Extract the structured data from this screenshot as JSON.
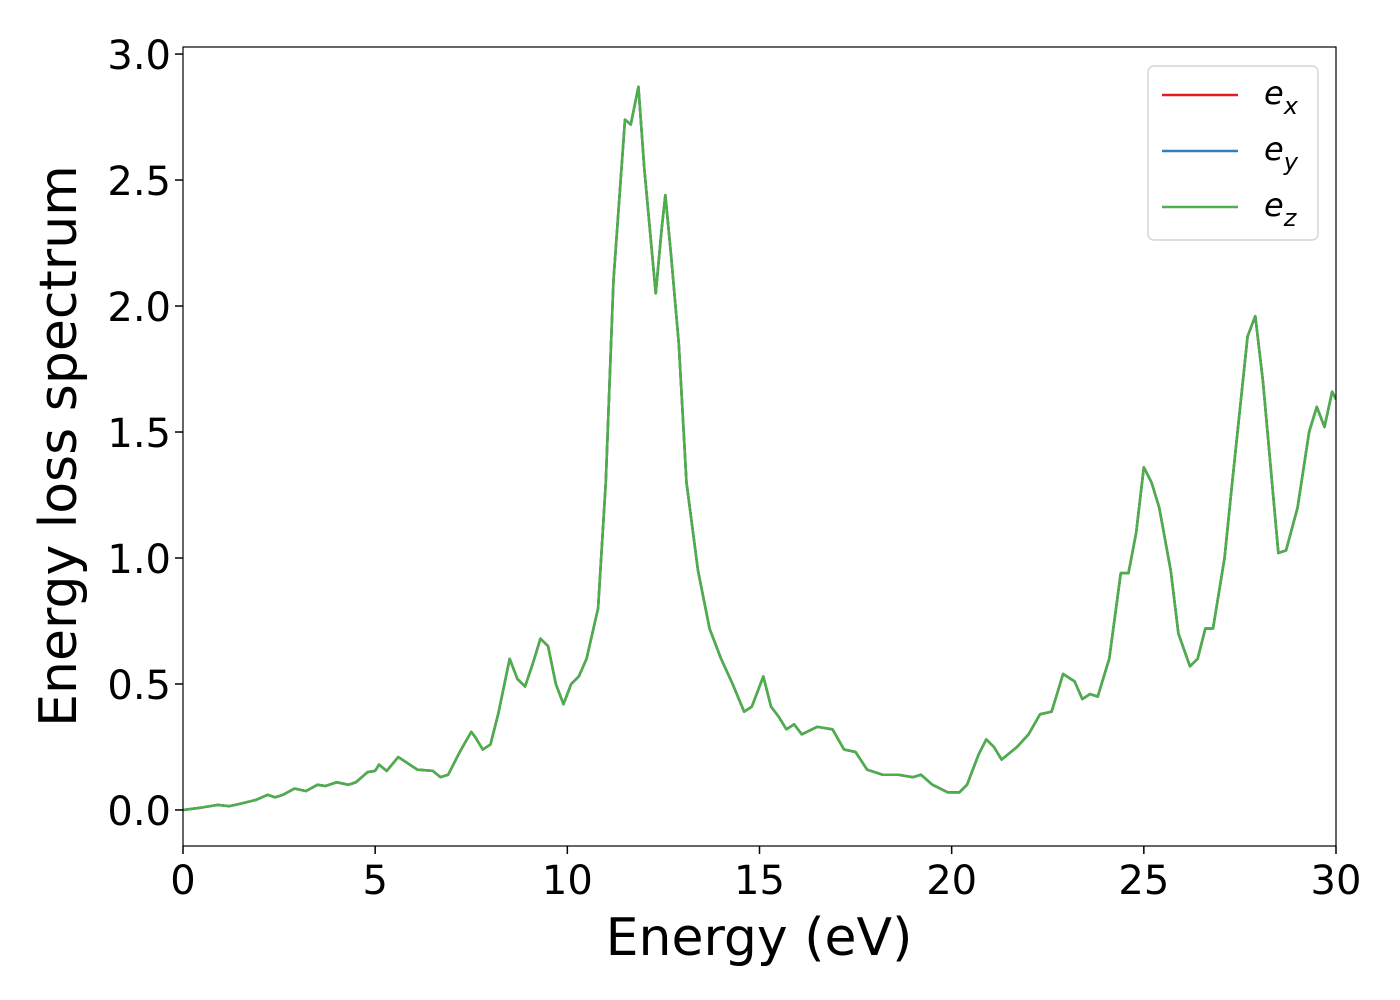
{
  "chart_data": {
    "type": "line",
    "xlabel": "Energy (eV)",
    "ylabel": "Energy loss spectrum",
    "xlim": [
      0,
      30
    ],
    "ylim": [
      -0.143,
      3.028
    ],
    "xticks": [
      0,
      5,
      10,
      15,
      20,
      25,
      30
    ],
    "yticks": [
      {
        "value": 0,
        "label": "0.0"
      },
      {
        "value": 0.5,
        "label": "0.5"
      },
      {
        "value": 1,
        "label": "1.0"
      },
      {
        "value": 1.5,
        "label": "1.5"
      },
      {
        "value": 2,
        "label": "2.0"
      },
      {
        "value": 2.5,
        "label": "2.5"
      },
      {
        "value": 3,
        "label": "3.0"
      }
    ],
    "legend": "upper right",
    "x": [
      0,
      0.5,
      0.9,
      1.2,
      1.5,
      1.9,
      2.2,
      2.4,
      2.6,
      2.9,
      3.2,
      3.5,
      3.7,
      4.0,
      4.3,
      4.5,
      4.8,
      5.0,
      5.1,
      5.3,
      5.6,
      5.8,
      6.1,
      6.5,
      6.7,
      6.9,
      7.2,
      7.5,
      7.6,
      7.8,
      8.0,
      8.2,
      8.5,
      8.7,
      8.9,
      9.1,
      9.3,
      9.5,
      9.7,
      9.9,
      10.1,
      10.3,
      10.5,
      10.8,
      11.0,
      11.2,
      11.5,
      11.65,
      11.85,
      12.0,
      12.3,
      12.45,
      12.55,
      12.7,
      12.9,
      13.1,
      13.4,
      13.7,
      14.0,
      14.3,
      14.6,
      14.8,
      15.1,
      15.3,
      15.5,
      15.7,
      15.9,
      16.1,
      16.5,
      16.9,
      17.2,
      17.5,
      17.8,
      18.2,
      18.6,
      19.0,
      19.2,
      19.5,
      19.9,
      20.2,
      20.4,
      20.7,
      20.9,
      21.1,
      21.3,
      21.7,
      22.0,
      22.3,
      22.6,
      22.9,
      23.2,
      23.4,
      23.6,
      23.8,
      24.1,
      24.4,
      24.6,
      24.8,
      25.0,
      25.2,
      25.4,
      25.7,
      25.9,
      26.2,
      26.4,
      26.6,
      26.8,
      27.1,
      27.3,
      27.7,
      27.9,
      28.1,
      28.5,
      28.7,
      29.0,
      29.3,
      29.5,
      29.7,
      29.9,
      30.0
    ],
    "series": [
      {
        "name": "e_x",
        "color": "#e41a1c",
        "values": [
          0,
          0.01,
          0.02,
          0.015,
          0.025,
          0.04,
          0.06,
          0.05,
          0.06,
          0.085,
          0.075,
          0.1,
          0.095,
          0.11,
          0.1,
          0.11,
          0.15,
          0.155,
          0.18,
          0.155,
          0.21,
          0.19,
          0.16,
          0.155,
          0.13,
          0.14,
          0.23,
          0.31,
          0.29,
          0.24,
          0.26,
          0.38,
          0.6,
          0.52,
          0.49,
          0.58,
          0.68,
          0.65,
          0.5,
          0.42,
          0.5,
          0.53,
          0.6,
          0.8,
          1.3,
          2.1,
          2.74,
          2.72,
          2.87,
          2.55,
          2.05,
          2.3,
          2.44,
          2.2,
          1.85,
          1.3,
          0.95,
          0.72,
          0.6,
          0.5,
          0.39,
          0.41,
          0.53,
          0.41,
          0.37,
          0.32,
          0.34,
          0.3,
          0.33,
          0.32,
          0.24,
          0.23,
          0.16,
          0.14,
          0.14,
          0.13,
          0.14,
          0.1,
          0.07,
          0.07,
          0.1,
          0.22,
          0.28,
          0.25,
          0.2,
          0.25,
          0.3,
          0.38,
          0.39,
          0.54,
          0.51,
          0.44,
          0.46,
          0.45,
          0.6,
          0.94,
          0.94,
          1.1,
          1.36,
          1.3,
          1.2,
          0.95,
          0.7,
          0.57,
          0.6,
          0.72,
          0.72,
          1.0,
          1.3,
          1.88,
          1.96,
          1.7,
          1.02,
          1.03,
          1.2,
          1.5,
          1.6,
          1.52,
          1.66,
          1.63
        ]
      },
      {
        "name": "e_y",
        "color": "#377eb8",
        "values": [
          0,
          0.01,
          0.02,
          0.015,
          0.025,
          0.04,
          0.06,
          0.05,
          0.06,
          0.085,
          0.075,
          0.1,
          0.095,
          0.11,
          0.1,
          0.11,
          0.15,
          0.155,
          0.18,
          0.155,
          0.21,
          0.19,
          0.16,
          0.155,
          0.13,
          0.14,
          0.23,
          0.31,
          0.29,
          0.24,
          0.26,
          0.38,
          0.6,
          0.52,
          0.49,
          0.58,
          0.68,
          0.65,
          0.5,
          0.42,
          0.5,
          0.53,
          0.6,
          0.8,
          1.3,
          2.1,
          2.74,
          2.72,
          2.87,
          2.55,
          2.05,
          2.3,
          2.44,
          2.2,
          1.85,
          1.3,
          0.95,
          0.72,
          0.6,
          0.5,
          0.39,
          0.41,
          0.53,
          0.41,
          0.37,
          0.32,
          0.34,
          0.3,
          0.33,
          0.32,
          0.24,
          0.23,
          0.16,
          0.14,
          0.14,
          0.13,
          0.14,
          0.1,
          0.07,
          0.07,
          0.1,
          0.22,
          0.28,
          0.25,
          0.2,
          0.25,
          0.3,
          0.38,
          0.39,
          0.54,
          0.51,
          0.44,
          0.46,
          0.45,
          0.6,
          0.94,
          0.94,
          1.1,
          1.36,
          1.3,
          1.2,
          0.95,
          0.7,
          0.57,
          0.6,
          0.72,
          0.72,
          1.0,
          1.3,
          1.88,
          1.96,
          1.7,
          1.02,
          1.03,
          1.2,
          1.5,
          1.6,
          1.52,
          1.66,
          1.63
        ]
      },
      {
        "name": "e_z",
        "color": "#4daf4a",
        "values": [
          0,
          0.01,
          0.02,
          0.015,
          0.025,
          0.04,
          0.06,
          0.05,
          0.06,
          0.085,
          0.075,
          0.1,
          0.095,
          0.11,
          0.1,
          0.11,
          0.15,
          0.155,
          0.18,
          0.155,
          0.21,
          0.19,
          0.16,
          0.155,
          0.13,
          0.14,
          0.23,
          0.31,
          0.29,
          0.24,
          0.26,
          0.38,
          0.6,
          0.52,
          0.49,
          0.58,
          0.68,
          0.65,
          0.5,
          0.42,
          0.5,
          0.53,
          0.6,
          0.8,
          1.3,
          2.1,
          2.74,
          2.72,
          2.87,
          2.55,
          2.05,
          2.3,
          2.44,
          2.2,
          1.85,
          1.3,
          0.95,
          0.72,
          0.6,
          0.5,
          0.39,
          0.41,
          0.53,
          0.41,
          0.37,
          0.32,
          0.34,
          0.3,
          0.33,
          0.32,
          0.24,
          0.23,
          0.16,
          0.14,
          0.14,
          0.13,
          0.14,
          0.1,
          0.07,
          0.07,
          0.1,
          0.22,
          0.28,
          0.25,
          0.2,
          0.25,
          0.3,
          0.38,
          0.39,
          0.54,
          0.51,
          0.44,
          0.46,
          0.45,
          0.6,
          0.94,
          0.94,
          1.1,
          1.36,
          1.3,
          1.2,
          0.95,
          0.7,
          0.57,
          0.6,
          0.72,
          0.72,
          1.0,
          1.3,
          1.88,
          1.96,
          1.7,
          1.02,
          1.03,
          1.2,
          1.5,
          1.6,
          1.52,
          1.66,
          1.63
        ]
      }
    ]
  }
}
